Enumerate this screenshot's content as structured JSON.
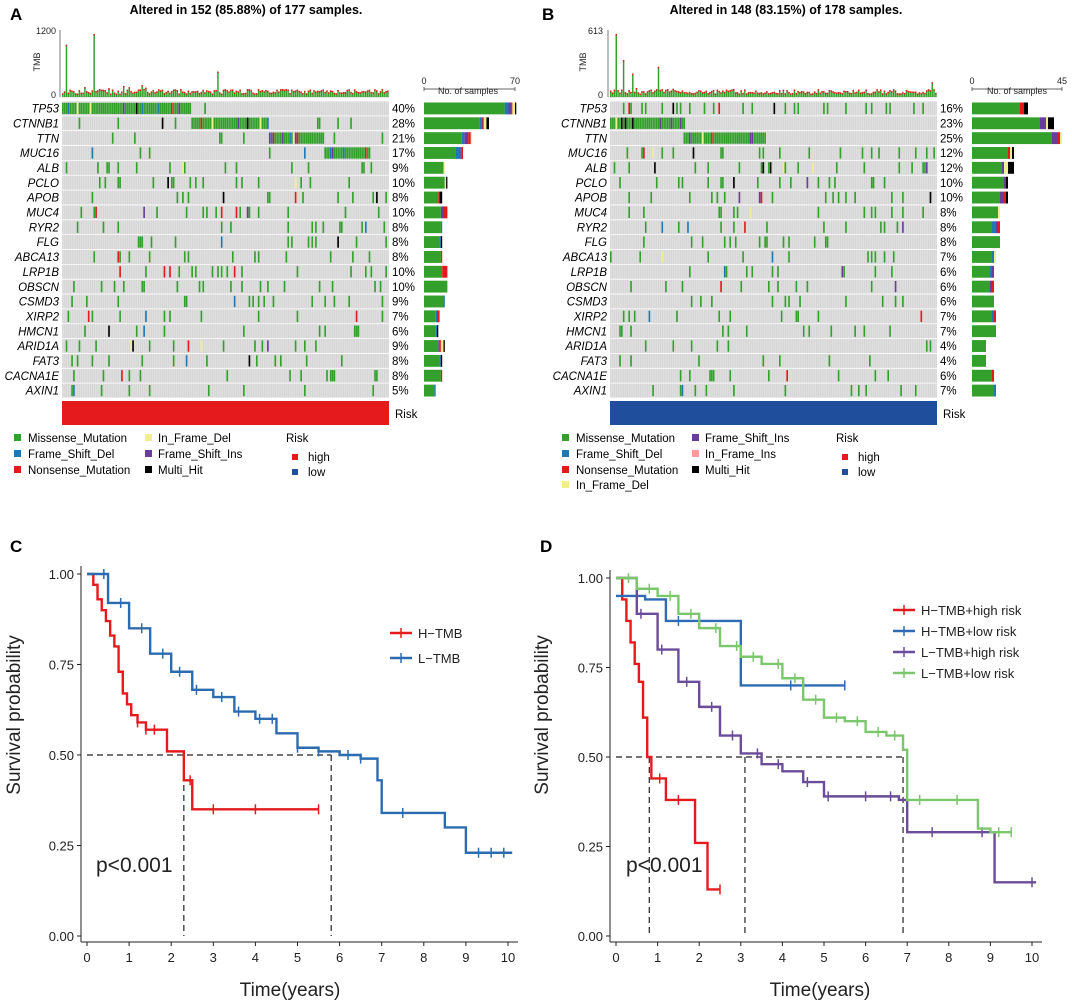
{
  "colors": {
    "Missense_Mutation": "#33a02c",
    "Frame_Shift_Del": "#1f78b4",
    "Nonsense_Mutation": "#e31a1c",
    "In_Frame_Del": "#f1ee8f",
    "Frame_Shift_Ins": "#6a3d9a",
    "In_Frame_Ins": "#fb9a99",
    "Multi_Hit": "#000000",
    "high": "#e41a1c",
    "low": "#1f4e9c",
    "grid": "#d5d5d5",
    "H-TMB": "#e41a1c",
    "L-TMB": "#2b6cb0",
    "H-TMB+high risk": "#e41a1c",
    "H-TMB+low risk": "#2e6bb5",
    "L-TMB+high risk": "#6b4c9a",
    "L-TMB+low risk": "#7bc86c"
  },
  "panels": {
    "A": {
      "label": "A",
      "title": "Altered in 152 (85.88%) of 177 samples.",
      "tmb_label": "TMB",
      "tmb_max": "1200",
      "tmb_min": "0",
      "bar_axis_min": "0",
      "bar_axis_max": "70",
      "bar_axis_label": "No. of samples",
      "risk_label": "Risk",
      "risk_group": "high",
      "n_samples": 177,
      "genes": [
        "TP53",
        "CTNNB1",
        "TTN",
        "MUC16",
        "ALB",
        "PCLO",
        "APOB",
        "MUC4",
        "RYR2",
        "FLG",
        "ABCA13",
        "LRP1B",
        "OBSCN",
        "CSMD3",
        "XIRP2",
        "HMCN1",
        "ARID1A",
        "FAT3",
        "CACNA1E",
        "AXIN1"
      ],
      "percents": [
        "40%",
        "28%",
        "21%",
        "17%",
        "9%",
        "10%",
        "8%",
        "10%",
        "8%",
        "8%",
        "8%",
        "10%",
        "10%",
        "9%",
        "7%",
        "6%",
        "9%",
        "8%",
        "8%",
        "5%"
      ],
      "legend_items": [
        "Missense_Mutation",
        "Frame_Shift_Del",
        "Nonsense_Mutation",
        "In_Frame_Del",
        "Frame_Shift_Ins",
        "Multi_Hit"
      ],
      "legend_risk_title": "Risk",
      "legend_risk": [
        "high",
        "low"
      ]
    },
    "B": {
      "label": "B",
      "title": "Altered in 148 (83.15%) of 178 samples.",
      "tmb_label": "TMB",
      "tmb_max": "613",
      "tmb_min": "0",
      "bar_axis_min": "0",
      "bar_axis_max": "45",
      "bar_axis_label": "No. of samples",
      "risk_label": "Risk",
      "risk_group": "low",
      "n_samples": 178,
      "genes": [
        "TP53",
        "CTNNB1",
        "TTN",
        "MUC16",
        "ALB",
        "PCLO",
        "APOB",
        "MUC4",
        "RYR2",
        "FLG",
        "ABCA13",
        "LRP1B",
        "OBSCN",
        "CSMD3",
        "XIRP2",
        "HMCN1",
        "ARID1A",
        "FAT3",
        "CACNA1E",
        "AXIN1"
      ],
      "percents": [
        "16%",
        "23%",
        "25%",
        "12%",
        "12%",
        "10%",
        "10%",
        "8%",
        "8%",
        "8%",
        "7%",
        "6%",
        "6%",
        "6%",
        "7%",
        "7%",
        "4%",
        "4%",
        "6%",
        "7%"
      ],
      "legend_items": [
        "Missense_Mutation",
        "Frame_Shift_Del",
        "Nonsense_Mutation",
        "In_Frame_Del",
        "Frame_Shift_Ins",
        "In_Frame_Ins",
        "Multi_Hit"
      ],
      "legend_risk_title": "Risk",
      "legend_risk": [
        "high",
        "low"
      ]
    },
    "C": {
      "label": "C",
      "xlabel": "Time(years)",
      "ylabel": "Survival probability",
      "pvalue": "p<0.001",
      "x_ticks": [
        "0",
        "1",
        "2",
        "3",
        "4",
        "5",
        "6",
        "7",
        "8",
        "9",
        "10"
      ],
      "y_ticks": [
        "0.00",
        "0.25",
        "0.50",
        "0.75",
        "1.00"
      ]
    },
    "D": {
      "label": "D",
      "xlabel": "Time(years)",
      "ylabel": "Survival probability",
      "pvalue": "p<0.001",
      "x_ticks": [
        "0",
        "1",
        "2",
        "3",
        "4",
        "5",
        "6",
        "7",
        "8",
        "9",
        "10"
      ],
      "y_ticks": [
        "0.00",
        "0.25",
        "0.50",
        "0.75",
        "1.00"
      ]
    }
  },
  "chart_data": [
    {
      "panel": "A",
      "type": "heatmap",
      "title": "Altered in 152 (85.88%) of 177 samples.",
      "categories": [
        "TP53",
        "CTNNB1",
        "TTN",
        "MUC16",
        "ALB",
        "PCLO",
        "APOB",
        "MUC4",
        "RYR2",
        "FLG",
        "ABCA13",
        "LRP1B",
        "OBSCN",
        "CSMD3",
        "XIRP2",
        "HMCN1",
        "ARID1A",
        "FAT3",
        "CACNA1E",
        "AXIN1"
      ],
      "values": [
        40,
        28,
        21,
        17,
        9,
        10,
        8,
        10,
        8,
        8,
        8,
        10,
        10,
        9,
        7,
        6,
        9,
        8,
        8,
        5
      ],
      "sample_count_max": 70,
      "tmb_max": 1200
    },
    {
      "panel": "B",
      "type": "heatmap",
      "title": "Altered in 148 (83.15%) of 178 samples.",
      "categories": [
        "TP53",
        "CTNNB1",
        "TTN",
        "MUC16",
        "ALB",
        "PCLO",
        "APOB",
        "MUC4",
        "RYR2",
        "FLG",
        "ABCA13",
        "LRP1B",
        "OBSCN",
        "CSMD3",
        "XIRP2",
        "HMCN1",
        "ARID1A",
        "FAT3",
        "CACNA1E",
        "AXIN1"
      ],
      "values": [
        16,
        23,
        25,
        12,
        12,
        10,
        10,
        8,
        8,
        8,
        7,
        6,
        6,
        6,
        7,
        7,
        4,
        4,
        6,
        7
      ],
      "sample_count_max": 45,
      "tmb_max": 613
    },
    {
      "panel": "C",
      "type": "line",
      "xlabel": "Time(years)",
      "ylabel": "Survival probability",
      "xlim": [
        0,
        10
      ],
      "ylim": [
        0,
        1
      ],
      "median_lines": [
        2.3,
        5.8
      ],
      "series": [
        {
          "name": "H−TMB",
          "x": [
            0,
            0.15,
            0.25,
            0.35,
            0.45,
            0.55,
            0.65,
            0.75,
            0.85,
            0.95,
            1.05,
            1.2,
            1.4,
            1.6,
            1.9,
            2.3,
            2.5,
            3.0,
            4.0,
            5.5
          ],
          "y": [
            1.0,
            0.97,
            0.93,
            0.9,
            0.87,
            0.83,
            0.8,
            0.73,
            0.67,
            0.64,
            0.61,
            0.59,
            0.57,
            0.57,
            0.51,
            0.43,
            0.35,
            0.35,
            0.35,
            0.35
          ],
          "censor_x": [
            1.2,
            1.4,
            1.6,
            2.45,
            3.0,
            4.0,
            5.5
          ]
        },
        {
          "name": "L−TMB",
          "x": [
            0,
            0.5,
            1.0,
            1.5,
            2.0,
            2.5,
            3.0,
            3.5,
            4.0,
            4.5,
            5.0,
            5.5,
            6.0,
            6.5,
            6.9,
            7.0,
            8.5,
            9.0,
            9.5,
            10.1
          ],
          "y": [
            1.0,
            0.92,
            0.85,
            0.78,
            0.73,
            0.68,
            0.66,
            0.62,
            0.6,
            0.56,
            0.52,
            0.51,
            0.5,
            0.49,
            0.43,
            0.34,
            0.3,
            0.23,
            0.23,
            0.23
          ],
          "censor_x": [
            0.4,
            0.8,
            1.3,
            1.8,
            2.2,
            2.6,
            3.2,
            3.6,
            4.1,
            4.4,
            5.0,
            5.5,
            6.2,
            6.5,
            7.5,
            9.3,
            9.6,
            9.9
          ]
        }
      ]
    },
    {
      "panel": "D",
      "type": "line",
      "xlabel": "Time(years)",
      "ylabel": "Survival probability",
      "xlim": [
        0,
        10
      ],
      "ylim": [
        0,
        1
      ],
      "median_lines": [
        0.8,
        3.1,
        6.9
      ],
      "series": [
        {
          "name": "H−TMB+high risk",
          "x": [
            0,
            0.15,
            0.25,
            0.35,
            0.45,
            0.55,
            0.65,
            0.75,
            0.85,
            0.95,
            1.2,
            1.5,
            1.9,
            2.2,
            2.5
          ],
          "y": [
            1.0,
            0.94,
            0.88,
            0.82,
            0.76,
            0.71,
            0.61,
            0.5,
            0.44,
            0.44,
            0.38,
            0.38,
            0.26,
            0.13,
            0.13
          ],
          "censor_x": [
            1.05,
            1.5,
            2.5
          ]
        },
        {
          "name": "H−TMB+low risk",
          "x": [
            0,
            0.4,
            0.7,
            1.2,
            2.6,
            3.0,
            4.0,
            5.5
          ],
          "y": [
            0.95,
            0.95,
            0.94,
            0.88,
            0.88,
            0.7,
            0.7,
            0.7
          ],
          "censor_x": [
            0.5,
            1.5,
            2.0,
            4.2,
            5.5
          ]
        },
        {
          "name": "L−TMB+high risk",
          "x": [
            0,
            0.5,
            1.0,
            1.5,
            2.0,
            2.5,
            3.0,
            3.5,
            4.0,
            4.5,
            5.0,
            6.0,
            6.8,
            7.0,
            8.9,
            9.1,
            10.1
          ],
          "y": [
            1.0,
            0.9,
            0.8,
            0.71,
            0.64,
            0.56,
            0.51,
            0.48,
            0.46,
            0.43,
            0.39,
            0.39,
            0.38,
            0.29,
            0.29,
            0.15,
            0.15
          ],
          "censor_x": [
            0.6,
            1.1,
            1.7,
            2.3,
            2.8,
            3.4,
            3.9,
            4.6,
            5.1,
            6.0,
            6.6,
            7.6,
            8.8,
            10.0
          ]
        },
        {
          "name": "L−TMB+low risk",
          "x": [
            0,
            0.5,
            1.0,
            1.5,
            2.0,
            2.5,
            3.0,
            3.5,
            4.0,
            4.5,
            5.0,
            5.5,
            6.0,
            6.5,
            6.9,
            7.0,
            8.0,
            8.7,
            9.0,
            9.5
          ],
          "y": [
            1.0,
            0.97,
            0.95,
            0.9,
            0.86,
            0.81,
            0.78,
            0.76,
            0.72,
            0.66,
            0.61,
            0.6,
            0.57,
            0.56,
            0.52,
            0.38,
            0.38,
            0.3,
            0.29,
            0.29
          ],
          "censor_x": [
            0.3,
            0.8,
            1.3,
            1.8,
            2.4,
            2.9,
            3.3,
            3.9,
            4.3,
            4.8,
            5.3,
            5.8,
            6.3,
            6.7,
            7.3,
            8.2,
            9.2,
            9.5
          ]
        }
      ]
    }
  ]
}
